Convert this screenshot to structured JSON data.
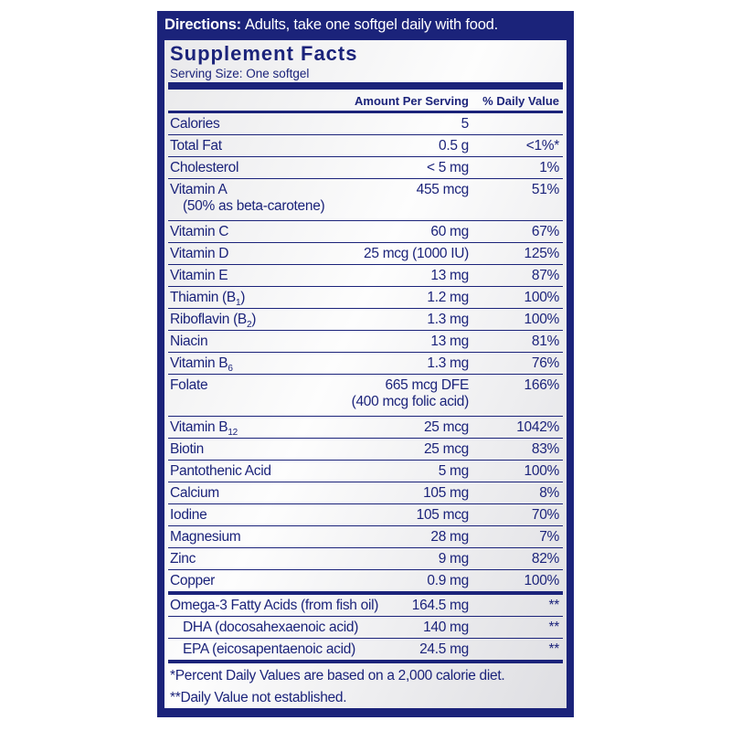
{
  "directions": {
    "label": "Directions:",
    "text": "Adults, take one softgel daily with food."
  },
  "facts": {
    "title": "Supplement Facts",
    "serving_size": "Serving Size: One softgel",
    "header": {
      "amount": "Amount Per Serving",
      "dv": "% Daily Value"
    },
    "rows": [
      {
        "name": "Calories",
        "amount": "5"
      },
      {
        "name": "Total Fat",
        "amount": "0.5 g",
        "dv": "<1%*"
      },
      {
        "name": "Cholesterol",
        "amount": "< 5 mg",
        "dv": "1%"
      },
      {
        "name": "Vitamin A",
        "note": "(50% as beta-carotene)",
        "amount": "455 mcg",
        "dv": "51%"
      },
      {
        "name": "Vitamin C",
        "amount": "60 mg",
        "dv": "67%"
      },
      {
        "name": "Vitamin D",
        "amount": "25 mcg (1000 IU)",
        "dv": "125%"
      },
      {
        "name": "Vitamin E",
        "amount": "13 mg",
        "dv": "87%"
      },
      {
        "name": "Thiamin (B",
        "sub": "1",
        "name_end": ")",
        "amount": "1.2 mg",
        "dv": "100%"
      },
      {
        "name": "Riboflavin (B",
        "sub": "2",
        "name_end": ")",
        "amount": "1.3 mg",
        "dv": "100%"
      },
      {
        "name": "Niacin",
        "amount": "13 mg",
        "dv": "81%"
      },
      {
        "name": "Vitamin B",
        "sub": "6",
        "amount": "1.3 mg",
        "dv": "76%"
      },
      {
        "name": "Folate",
        "amount": "665 mcg DFE",
        "amount_note": "(400 mcg folic acid)",
        "dv": "166%"
      },
      {
        "name": "Vitamin B",
        "sub": "12",
        "amount": "25 mcg",
        "dv": "1042%"
      },
      {
        "name": "Biotin",
        "amount": "25 mcg",
        "dv": "83%"
      },
      {
        "name": "Pantothenic Acid",
        "amount": "5 mg",
        "dv": "100%"
      },
      {
        "name": "Calcium",
        "amount": "105 mg",
        "dv": "8%"
      },
      {
        "name": "Iodine",
        "amount": "105 mcg",
        "dv": "70%"
      },
      {
        "name": "Magnesium",
        "amount": "28 mg",
        "dv": "7%"
      },
      {
        "name": "Zinc",
        "amount": "9 mg",
        "dv": "82%"
      },
      {
        "name": "Copper",
        "amount": "0.9 mg",
        "dv": "100%"
      }
    ],
    "omega_rows": [
      {
        "name": "Omega-3 Fatty Acids (from fish oil)",
        "amount": "164.5 mg",
        "dv": "**"
      },
      {
        "name": "DHA (docosahexaenoic acid)",
        "amount": "140 mg",
        "dv": "**"
      },
      {
        "name": "EPA (eicosapentaenoic acid)",
        "amount": "24.5 mg",
        "dv": "**"
      }
    ],
    "footnotes": [
      "*Percent Daily Values are based on a 2,000 calorie diet.",
      "**Daily Value not established."
    ]
  }
}
